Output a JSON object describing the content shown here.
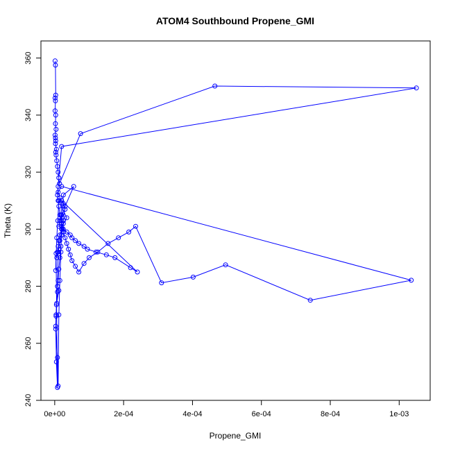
{
  "chart_data": {
    "type": "line",
    "title": "ATOM4 Southbound Propene_GMI",
    "xlabel": "Propene_GMI",
    "ylabel": "Theta (K)",
    "xlim": [
      -4e-05,
      0.00109
    ],
    "ylim": [
      240,
      366
    ],
    "xticks": [
      {
        "value": 0,
        "label": "0e+00"
      },
      {
        "value": 0.0002,
        "label": "2e-04"
      },
      {
        "value": 0.0004,
        "label": "4e-04"
      },
      {
        "value": 0.0006,
        "label": "6e-04"
      },
      {
        "value": 0.0008,
        "label": "8e-04"
      },
      {
        "value": 0.001,
        "label": "1e-03"
      }
    ],
    "yticks": [
      {
        "value": 240,
        "label": "240"
      },
      {
        "value": 260,
        "label": "260"
      },
      {
        "value": 280,
        "label": "280"
      },
      {
        "value": 300,
        "label": "300"
      },
      {
        "value": 320,
        "label": "320"
      },
      {
        "value": 340,
        "label": "340"
      },
      {
        "value": 360,
        "label": "360"
      }
    ],
    "color": "#0000ff",
    "marker": "open-circle",
    "grid": false,
    "series": [
      {
        "x": [
          1e-06,
          2e-06,
          3e-06,
          1e-06,
          2e-06,
          1e-06,
          3e-06,
          2e-06,
          4e-06,
          1e-06,
          2e-06,
          3e-06,
          2e-06,
          5e-06,
          3e-06,
          4e-06,
          6e-06,
          8e-06,
          1e-05,
          1.2e-05,
          1.4e-05,
          7.5e-05,
          0.000465,
          0.00105,
          2e-05,
          1.2e-05,
          1e-05,
          8e-06,
          1e-05,
          1.2e-05,
          1.5e-05,
          1.8e-05,
          2e-05,
          2.5e-05,
          3e-05,
          3.5e-05,
          4e-05,
          4.5e-05,
          5e-05,
          6e-05,
          7e-05,
          8.5e-05,
          0.0001,
          0.000125,
          0.000155,
          0.000185,
          0.000215,
          0.000235,
          0.00031,
          0.000402,
          0.000496,
          0.000742,
          0.001035,
          2e-05,
          1e-05,
          1.5e-05,
          2.5e-05,
          3e-05,
          2e-05,
          1.5e-05,
          1.2e-05,
          2.5e-05,
          3.5e-05,
          4.5e-05,
          5e-05,
          6e-05,
          7e-05,
          8.5e-05,
          9.5e-05,
          0.00012,
          0.00015,
          0.000175,
          0.00022,
          0.00024,
          2e-05,
          1.8e-05,
          2.2e-05,
          1.5e-05,
          1e-05,
          8e-06,
          1.2e-05,
          5e-06,
          4e-06,
          3e-06,
          8e-06,
          1e-05,
          1.2e-05,
          1.5e-05,
          1.8e-05,
          2e-05,
          2.5e-05,
          5.5e-05,
          3e-05,
          2.5e-05,
          2e-05,
          1.8e-05,
          1.5e-05,
          1.2e-05,
          1e-05,
          8e-06,
          6e-06,
          4e-06,
          3e-06,
          5e-06,
          8e-06,
          4e-06,
          3e-06,
          6e-06,
          9e-06,
          1.2e-05,
          3.5e-05,
          2.5e-05,
          2e-05,
          1.5e-05,
          1.2e-05,
          1e-05,
          8e-06,
          6e-06
        ],
        "y": [
          359,
          357.5,
          347,
          346,
          345,
          341.5,
          340,
          337,
          335,
          333,
          332,
          331,
          330,
          328,
          327,
          326,
          324,
          322,
          320,
          318,
          316,
          333.5,
          350.2,
          349.5,
          329,
          318,
          315,
          312,
          310,
          308,
          305,
          303,
          301,
          299,
          297,
          295,
          293,
          291,
          289,
          287,
          285,
          288,
          290,
          292,
          295,
          297,
          299,
          301,
          281.2,
          283.2,
          287.5,
          275.1,
          282.1,
          315,
          313,
          311,
          309,
          307,
          305,
          303,
          301,
          300,
          299,
          298,
          297,
          296,
          295,
          294,
          293,
          292,
          291,
          290,
          286.5,
          285,
          310,
          305,
          300,
          296,
          292,
          280,
          278.5,
          273.5,
          269.5,
          265,
          255,
          245,
          270,
          282,
          292,
          302,
          312,
          315,
          308,
          303,
          298,
          294,
          290,
          286,
          282,
          278,
          274,
          270,
          266,
          253.5,
          244.5,
          291.5,
          285.5,
          297,
          303,
          310,
          304,
          302,
          300,
          298,
          296,
          294,
          292,
          290
        ]
      }
    ]
  }
}
